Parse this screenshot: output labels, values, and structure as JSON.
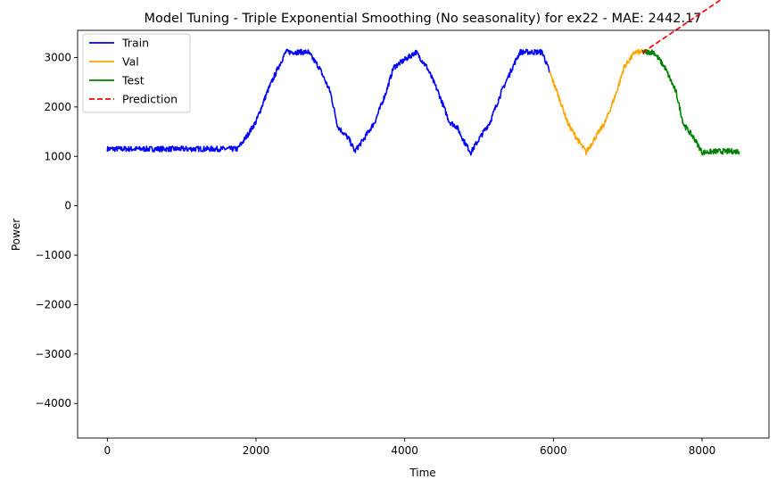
{
  "chart_data": {
    "type": "line",
    "title": "Model Tuning - Triple Exponential Smoothing (No seasonality) for ex22 - MAE: 2442.17",
    "xlabel": "Time",
    "ylabel": "Power",
    "xlim": [
      -400,
      8900
    ],
    "ylim": [
      -4700,
      3550
    ],
    "xticks": [
      0,
      2000,
      4000,
      6000,
      8000
    ],
    "yticks": [
      -4000,
      -3000,
      -2000,
      -1000,
      0,
      1000,
      2000,
      3000
    ],
    "xtick_labels": [
      "0",
      "2000",
      "4000",
      "6000",
      "8000"
    ],
    "ytick_labels": [
      "−4000",
      "−3000",
      "−2000",
      "−1000",
      "0",
      "1000",
      "2000",
      "3000"
    ],
    "grid": false,
    "legend": "top-left",
    "series": [
      {
        "name": "Train",
        "color": "#0000ff",
        "style": "solid",
        "x": [
          0,
          1750,
          1850,
          2000,
          2150,
          2300,
          2400,
          2700,
          2850,
          3000,
          3100,
          3250,
          3330,
          3450,
          3600,
          3750,
          3850,
          4150,
          4300,
          4450,
          4600,
          4700,
          4800,
          4890,
          5000,
          5150,
          5300,
          5450,
          5550,
          5850,
          5950
        ],
        "y": [
          1150,
          1150,
          1350,
          1700,
          2300,
          2800,
          3110,
          3110,
          2800,
          2300,
          1600,
          1350,
          1100,
          1350,
          1700,
          2300,
          2800,
          3110,
          2800,
          2300,
          1700,
          1600,
          1300,
          1080,
          1350,
          1700,
          2300,
          2800,
          3110,
          3110,
          2700
        ]
      },
      {
        "name": "Val",
        "color": "#ffa500",
        "style": "solid",
        "x": [
          5950,
          6050,
          6200,
          6300,
          6440,
          6550,
          6700,
          6850,
          6950,
          7100,
          7200
        ],
        "y": [
          2700,
          2300,
          1650,
          1400,
          1080,
          1350,
          1700,
          2300,
          2800,
          3110,
          3110
        ]
      },
      {
        "name": "Test",
        "color": "#008000",
        "style": "solid",
        "x": [
          7200,
          7350,
          7500,
          7650,
          7750,
          7900,
          8000,
          8200,
          8500
        ],
        "y": [
          3110,
          3110,
          2800,
          2300,
          1650,
          1350,
          1080,
          1100,
          1100
        ]
      },
      {
        "name": "Prediction",
        "color": "#ff0000",
        "style": "dashed",
        "x": [
          7200,
          8500
        ],
        "y": [
          3100,
          4420
        ]
      }
    ]
  }
}
